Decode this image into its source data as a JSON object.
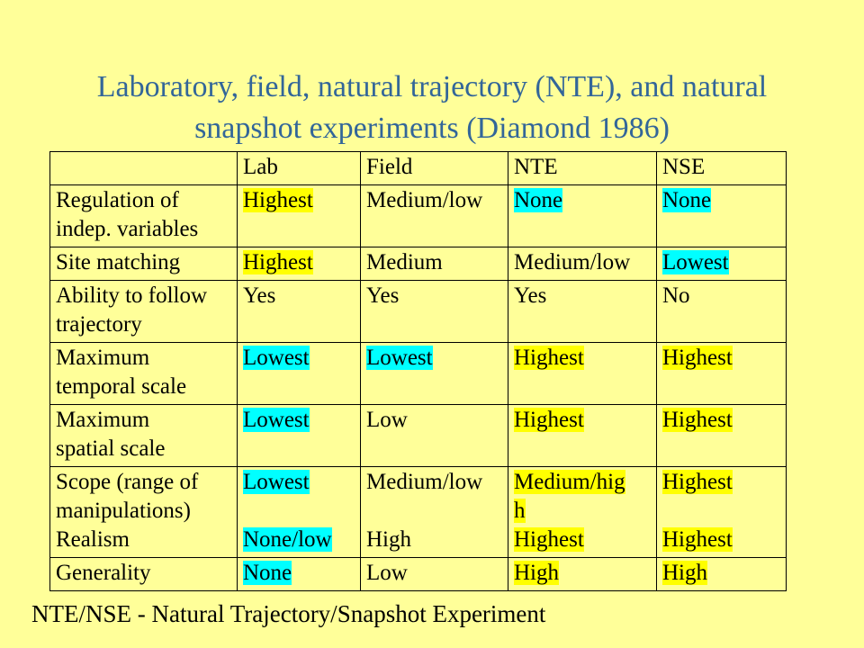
{
  "title": {
    "line1": "Laboratory, field, natural trajectory (NTE), and natural",
    "line2": "snapshot experiments (Diamond 1986)"
  },
  "colors": {
    "background": "#FFFF99",
    "title": "#336699",
    "yellow_highlight": "#FFFF00",
    "cyan_highlight": "#00FFFF"
  },
  "table": {
    "headers": [
      "",
      "Lab",
      "Field",
      "NTE",
      "NSE"
    ],
    "rows": [
      {
        "label": [
          "Regulation of",
          "indep. variables"
        ],
        "cells": [
          {
            "text": [
              "Highest"
            ],
            "hl": "y"
          },
          {
            "text": [
              "Medium/low"
            ],
            "hl": ""
          },
          {
            "text": [
              "None"
            ],
            "hl": "c"
          },
          {
            "text": [
              "None"
            ],
            "hl": "c"
          }
        ]
      },
      {
        "label": [
          "Site matching"
        ],
        "cells": [
          {
            "text": [
              "Highest"
            ],
            "hl": "y"
          },
          {
            "text": [
              "Medium"
            ],
            "hl": ""
          },
          {
            "text": [
              "Medium/low"
            ],
            "hl": ""
          },
          {
            "text": [
              "Lowest"
            ],
            "hl": "c"
          }
        ]
      },
      {
        "label": [
          "Ability to follow",
          "trajectory"
        ],
        "cells": [
          {
            "text": [
              "Yes"
            ],
            "hl": ""
          },
          {
            "text": [
              "Yes"
            ],
            "hl": ""
          },
          {
            "text": [
              "Yes"
            ],
            "hl": ""
          },
          {
            "text": [
              "No"
            ],
            "hl": ""
          }
        ]
      },
      {
        "label": [
          "Maximum",
          "temporal scale"
        ],
        "cells": [
          {
            "text": [
              "Lowest"
            ],
            "hl": "c"
          },
          {
            "text": [
              "Lowest"
            ],
            "hl": "c"
          },
          {
            "text": [
              "Highest"
            ],
            "hl": "y"
          },
          {
            "text": [
              "Highest"
            ],
            "hl": "y"
          }
        ]
      },
      {
        "label": [
          "Maximum",
          "spatial scale"
        ],
        "cells": [
          {
            "text": [
              "Lowest"
            ],
            "hl": "c"
          },
          {
            "text": [
              "Low"
            ],
            "hl": ""
          },
          {
            "text": [
              "Highest"
            ],
            "hl": "y"
          },
          {
            "text": [
              "Highest"
            ],
            "hl": "y"
          }
        ]
      },
      {
        "label": [
          "Scope (range of",
          "manipulations)",
          "Realism"
        ],
        "cells": [
          {
            "parts": [
              {
                "text": "Lowest",
                "hl": "c",
                "line": 0
              },
              {
                "text": "None/low",
                "hl": "c",
                "line": 2
              }
            ]
          },
          {
            "parts": [
              {
                "text": "Medium/low",
                "hl": "",
                "line": 0
              },
              {
                "text": "High",
                "hl": "",
                "line": 2
              }
            ]
          },
          {
            "parts": [
              {
                "text": "Medium/hig",
                "hl": "y",
                "line": 0
              },
              {
                "text": "h",
                "hl": "y",
                "line": 1
              },
              {
                "text": "Highest",
                "hl": "y",
                "line": 2
              }
            ]
          },
          {
            "parts": [
              {
                "text": "Highest",
                "hl": "y",
                "line": 0
              },
              {
                "text": "Highest",
                "hl": "y",
                "line": 2
              }
            ]
          }
        ]
      },
      {
        "label": [
          "Generality"
        ],
        "cells": [
          {
            "text": [
              "None"
            ],
            "hl": "c"
          },
          {
            "text": [
              "Low"
            ],
            "hl": ""
          },
          {
            "text": [
              "High"
            ],
            "hl": "y"
          },
          {
            "text": [
              "High"
            ],
            "hl": "y"
          }
        ]
      }
    ]
  },
  "footer": "NTE/NSE - Natural Trajectory/Snapshot Experiment"
}
